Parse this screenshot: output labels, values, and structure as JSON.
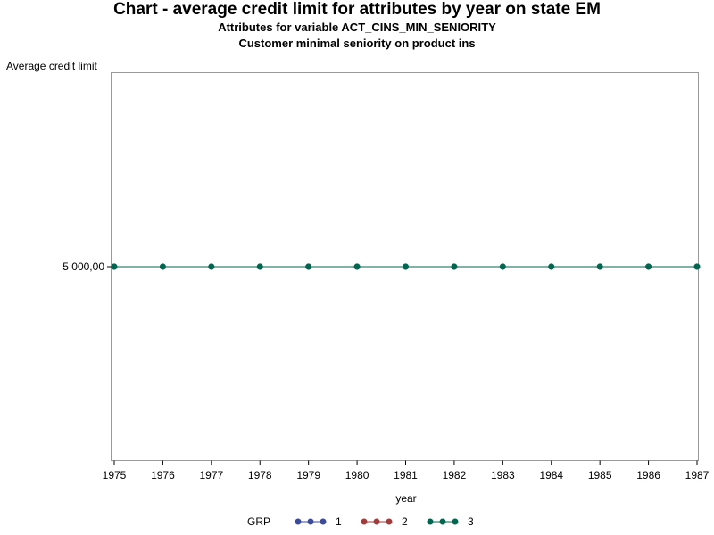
{
  "chart_data": {
    "type": "line",
    "title": "Chart - average credit limit for attributes by year on state EM",
    "subtitle": "Attributes for variable ACT_CINS_MIN_SENIORITY",
    "subtitle2": "Customer minimal seniority on product ins",
    "ylabel": "Average credit limit",
    "xlabel": "year",
    "x": [
      1975,
      1976,
      1977,
      1978,
      1979,
      1980,
      1981,
      1982,
      1983,
      1984,
      1985,
      1986,
      1987
    ],
    "y_ticks": [
      "5 000,00"
    ],
    "y_tick_values": [
      5000
    ],
    "ylim": [
      3000,
      7000
    ],
    "grid": false,
    "legend": {
      "title": "GRP",
      "placement": "bottom",
      "items": [
        {
          "label": "1",
          "color": "#3b4a9b"
        },
        {
          "label": "2",
          "color": "#a23b3b"
        },
        {
          "label": "3",
          "color": "#00664f"
        }
      ]
    },
    "series": [
      {
        "name": "3",
        "color": "#00664f",
        "values": [
          5000,
          5000,
          5000,
          5000,
          5000,
          5000,
          5000,
          5000,
          5000,
          5000,
          5000,
          5000,
          5000
        ]
      }
    ]
  }
}
